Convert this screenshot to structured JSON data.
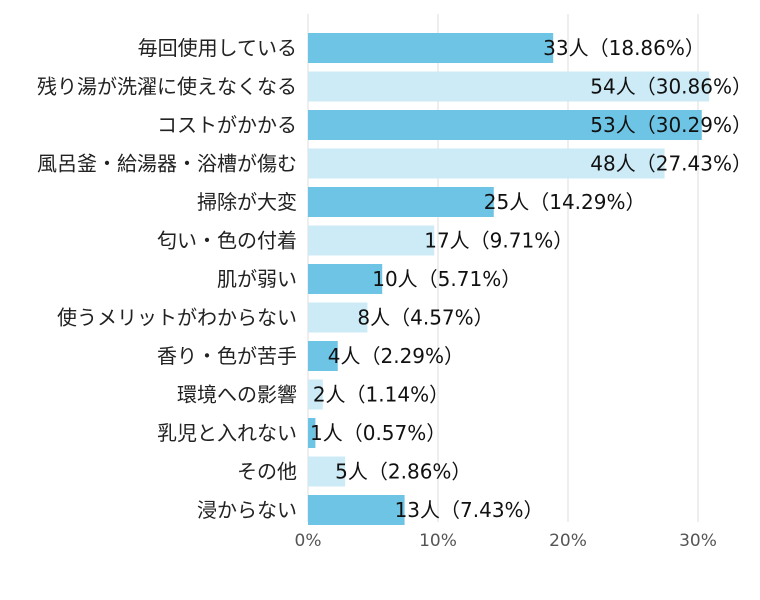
{
  "chart_data": {
    "type": "bar",
    "orientation": "horizontal",
    "categories": [
      "毎回使用している",
      "残り湯が洗濯に使えなくなる",
      "コストがかかる",
      "風呂釜・給湯器・浴槽が傷む",
      "掃除が大変",
      "匂い・色の付着",
      "肌が弱い",
      "使うメリットがわからない",
      "香り・色が苦手",
      "環境への影響",
      "乳児と入れない",
      "その他",
      "浸からない"
    ],
    "values": [
      18.86,
      30.86,
      30.29,
      27.43,
      14.29,
      9.71,
      5.71,
      4.57,
      2.29,
      1.14,
      0.57,
      2.86,
      7.43
    ],
    "data_labels": [
      "33人（18.86%）",
      "54人（30.86%）",
      "53人（30.29%）",
      "48人（27.43%）",
      "25人（14.29%）",
      "17人（9.71%）",
      "10人（5.71%）",
      "8人（4.57%）",
      "4人（2.29%）",
      "2人（1.14%）",
      "1人（0.57%）",
      "5人（2.86%）",
      "13人（7.43%）"
    ],
    "xlim": [
      0,
      31
    ],
    "xticks": [
      0,
      10,
      20,
      30
    ],
    "xtick_labels": [
      "0%",
      "10%",
      "20%",
      "30%"
    ],
    "grid": "vertical",
    "colors": [
      "#6EC4E4",
      "#CDEBF6"
    ]
  }
}
